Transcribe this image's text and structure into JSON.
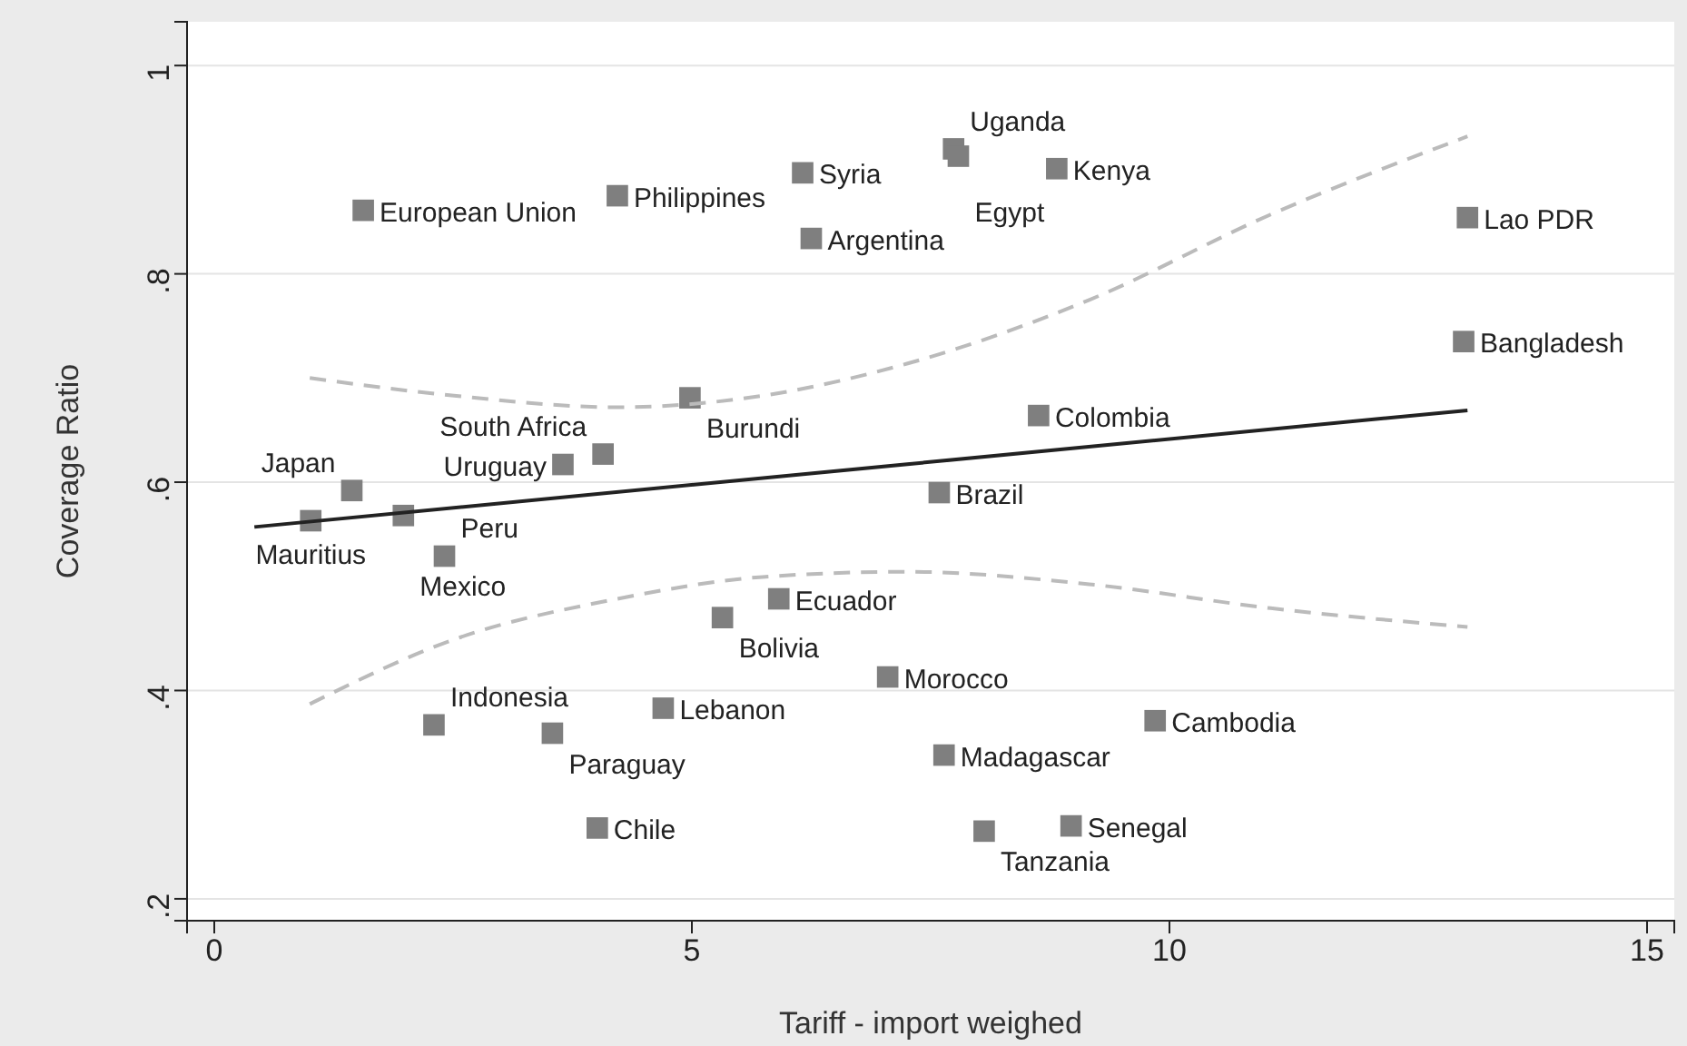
{
  "chart_data": {
    "type": "scatter",
    "xlabel": "Tariff - import weighed",
    "ylabel": "Coverage Ratio",
    "xlim": [
      -0.285,
      15.285
    ],
    "ylim": [
      0.179,
      1.042
    ],
    "xticks": [
      0,
      5,
      10,
      15
    ],
    "yticks": [
      {
        "value": 0.2,
        "label": ".2"
      },
      {
        "value": 0.4,
        "label": ".4"
      },
      {
        "value": 0.6,
        "label": ".6"
      },
      {
        "value": 0.8,
        "label": ".8"
      },
      {
        "value": 1,
        "label": "1"
      }
    ],
    "grid": "y",
    "marker": "square",
    "series": [
      {
        "color": "#7f7f7f",
        "x": [
          1.56,
          4.22,
          6.16,
          7.74,
          7.79,
          8.82,
          6.25,
          13.12,
          13.08,
          4.98,
          8.63,
          4.07,
          3.65,
          1.44,
          7.59,
          1.01,
          1.98,
          2.41,
          5.91,
          5.32,
          7.05,
          4.7,
          9.85,
          2.3,
          3.54,
          7.64,
          4.01,
          8.06,
          8.97
        ],
        "values": [
          0.861,
          0.875,
          0.897,
          0.92,
          0.913,
          0.901,
          0.834,
          0.854,
          0.735,
          0.681,
          0.664,
          0.627,
          0.617,
          0.592,
          0.59,
          0.563,
          0.568,
          0.529,
          0.488,
          0.47,
          0.413,
          0.383,
          0.371,
          0.367,
          0.359,
          0.338,
          0.268,
          0.265,
          0.27
        ]
      },
      {
        "type": "line",
        "color": "#222222",
        "line_style": "solid",
        "marker": "none",
        "x": [
          0.42,
          13.12
        ],
        "values": [
          0.557,
          0.669
        ]
      },
      {
        "type": "line",
        "color": "#bbbbbb",
        "line_style": "dashed",
        "marker": "none",
        "x": [
          1,
          2.51,
          4.22,
          5.74,
          7.26,
          9.16,
          11.06,
          13.12
        ],
        "values": [
          0.7,
          0.683,
          0.672,
          0.683,
          0.714,
          0.775,
          0.857,
          0.932
        ]
      },
      {
        "type": "line",
        "color": "#bbbbbb",
        "line_style": "dashed",
        "marker": "none",
        "x": [
          1,
          2.51,
          4.22,
          5.74,
          7.26,
          9.16,
          11.06,
          13.12
        ],
        "values": [
          0.387,
          0.449,
          0.488,
          0.509,
          0.514,
          0.502,
          0.479,
          0.461
        ]
      }
    ],
    "annotations": [
      {
        "text": "European Union",
        "x": 1.56,
        "y": 0.861
      },
      {
        "text": "Philippines",
        "x": 4.22,
        "y": 0.875
      },
      {
        "text": "Syria",
        "x": 6.16,
        "y": 0.897
      },
      {
        "text": "Uganda",
        "x": 7.74,
        "y": 0.92
      },
      {
        "text": "Egypt",
        "x": 7.79,
        "y": 0.913
      },
      {
        "text": "Kenya",
        "x": 8.82,
        "y": 0.901
      },
      {
        "text": "Argentina",
        "x": 6.25,
        "y": 0.834
      },
      {
        "text": "Lao PDR",
        "x": 13.12,
        "y": 0.854
      },
      {
        "text": "Bangladesh",
        "x": 13.08,
        "y": 0.735
      },
      {
        "text": "Burundi",
        "x": 4.98,
        "y": 0.681
      },
      {
        "text": "Colombia",
        "x": 8.63,
        "y": 0.664
      },
      {
        "text": "South Africa",
        "x": 4.07,
        "y": 0.627
      },
      {
        "text": "Uruguay",
        "x": 3.65,
        "y": 0.617
      },
      {
        "text": "Japan",
        "x": 1.44,
        "y": 0.592
      },
      {
        "text": "Brazil",
        "x": 7.59,
        "y": 0.59
      },
      {
        "text": "Mauritius",
        "x": 1.01,
        "y": 0.563
      },
      {
        "text": "Mexico",
        "x": 1.98,
        "y": 0.568
      },
      {
        "text": "Peru",
        "x": 2.41,
        "y": 0.529
      },
      {
        "text": "Ecuador",
        "x": 5.91,
        "y": 0.488
      },
      {
        "text": "Bolivia",
        "x": 5.32,
        "y": 0.47
      },
      {
        "text": "Morocco",
        "x": 7.05,
        "y": 0.413
      },
      {
        "text": "Lebanon",
        "x": 4.7,
        "y": 0.383
      },
      {
        "text": "Cambodia",
        "x": 9.85,
        "y": 0.371
      },
      {
        "text": "Indonesia",
        "x": 2.3,
        "y": 0.367
      },
      {
        "text": "Paraguay",
        "x": 3.54,
        "y": 0.359
      },
      {
        "text": "Madagascar",
        "x": 7.64,
        "y": 0.338
      },
      {
        "text": "Chile",
        "x": 4.01,
        "y": 0.268
      },
      {
        "text": "Tanzania",
        "x": 8.06,
        "y": 0.265
      },
      {
        "text": "Senegal",
        "x": 8.97,
        "y": 0.27
      }
    ]
  }
}
